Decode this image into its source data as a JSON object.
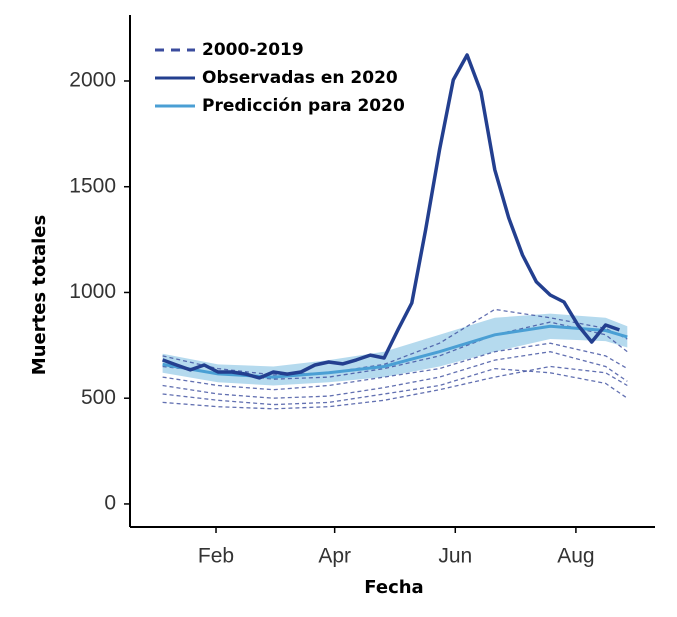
{
  "chart_data": {
    "type": "line",
    "xlabel": "Fecha",
    "ylabel": "Muertes totales",
    "xlim": [
      -11.5,
      254
    ],
    "xticks": [
      {
        "value": 32,
        "label": "Feb"
      },
      {
        "value": 92,
        "label": "Apr"
      },
      {
        "value": 153,
        "label": "Jun"
      },
      {
        "value": 214,
        "label": "Aug"
      }
    ],
    "ylim": [
      -109,
      2312
    ],
    "yticks": [
      0,
      500,
      1000,
      1500,
      2000
    ],
    "series": [
      {
        "name": "2000-2019",
        "color": "#3b4c9e",
        "dashed": true,
        "x": [
          5,
          33,
          61,
          89,
          117,
          145,
          173,
          201,
          229,
          240
        ],
        "lines": [
          [
            520,
            490,
            470,
            480,
            520,
            560,
            640,
            620,
            570,
            500
          ],
          [
            600,
            560,
            540,
            560,
            600,
            640,
            720,
            760,
            700,
            640
          ],
          [
            480,
            460,
            450,
            460,
            490,
            540,
            600,
            650,
            620,
            560
          ],
          [
            650,
            620,
            590,
            600,
            640,
            700,
            800,
            860,
            800,
            720
          ],
          [
            560,
            520,
            500,
            510,
            550,
            600,
            680,
            720,
            650,
            580
          ],
          [
            700,
            640,
            610,
            620,
            660,
            760,
            920,
            880,
            830,
            780
          ]
        ]
      },
      {
        "name": "Observadas en 2020",
        "color": "#233f8f",
        "x": [
          5,
          12,
          19,
          26,
          33,
          40,
          47,
          54,
          61,
          68,
          75,
          82,
          89,
          96,
          103,
          110,
          117,
          124,
          131,
          138,
          145,
          152,
          159,
          166,
          173,
          180,
          187,
          194,
          201,
          208,
          215,
          222,
          229,
          236
        ],
        "values": [
          681,
          657,
          634,
          657,
          624,
          624,
          614,
          596,
          624,
          614,
          624,
          657,
          671,
          662,
          681,
          704,
          690,
          823,
          950,
          1296,
          1674,
          2005,
          2123,
          1948,
          1580,
          1353,
          1177,
          1050,
          988,
          955,
          846,
          766,
          846,
          823
        ]
      },
      {
        "name": "Predicción para 2020",
        "color": "#4a9fd4",
        "band_color": "#add6ec",
        "x": [
          5,
          33,
          61,
          89,
          117,
          145,
          173,
          201,
          229,
          240
        ],
        "values": [
          660,
          615,
          600,
          620,
          650,
          720,
          800,
          840,
          820,
          790
        ],
        "upper": [
          710,
          660,
          650,
          680,
          720,
          800,
          880,
          900,
          880,
          840
        ],
        "lower": [
          620,
          575,
          560,
          575,
          600,
          650,
          720,
          780,
          770,
          740
        ]
      }
    ]
  }
}
